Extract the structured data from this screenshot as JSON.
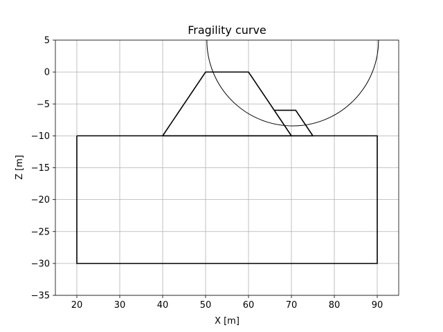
{
  "chart_data": {
    "type": "line",
    "title": "Fragility curve",
    "xlabel": "X [m]",
    "ylabel": "Z [m]",
    "xlim": [
      15,
      95
    ],
    "ylim": [
      -35,
      5
    ],
    "xticks": [
      20,
      30,
      40,
      50,
      60,
      70,
      80,
      90
    ],
    "yticks": [
      5,
      0,
      -5,
      -10,
      -15,
      -20,
      -25,
      -30,
      -35
    ],
    "grid": true,
    "series": [
      {
        "id": "foundation",
        "points": [
          [
            20,
            -10
          ],
          [
            90,
            -10
          ],
          [
            90,
            -30
          ],
          [
            20,
            -30
          ],
          [
            20,
            -10
          ]
        ]
      },
      {
        "id": "dike",
        "points": [
          [
            40,
            -10
          ],
          [
            50,
            0
          ],
          [
            60,
            0
          ],
          [
            70,
            -10
          ],
          [
            40,
            -10
          ]
        ]
      },
      {
        "id": "berm",
        "points": [
          [
            66,
            -6
          ],
          [
            71,
            -6
          ],
          [
            75,
            -10
          ],
          [
            70,
            -10
          ]
        ]
      },
      {
        "id": "slip-circle",
        "circle": {
          "cx": 70.3,
          "cz": 5,
          "r": 20
        }
      }
    ]
  }
}
